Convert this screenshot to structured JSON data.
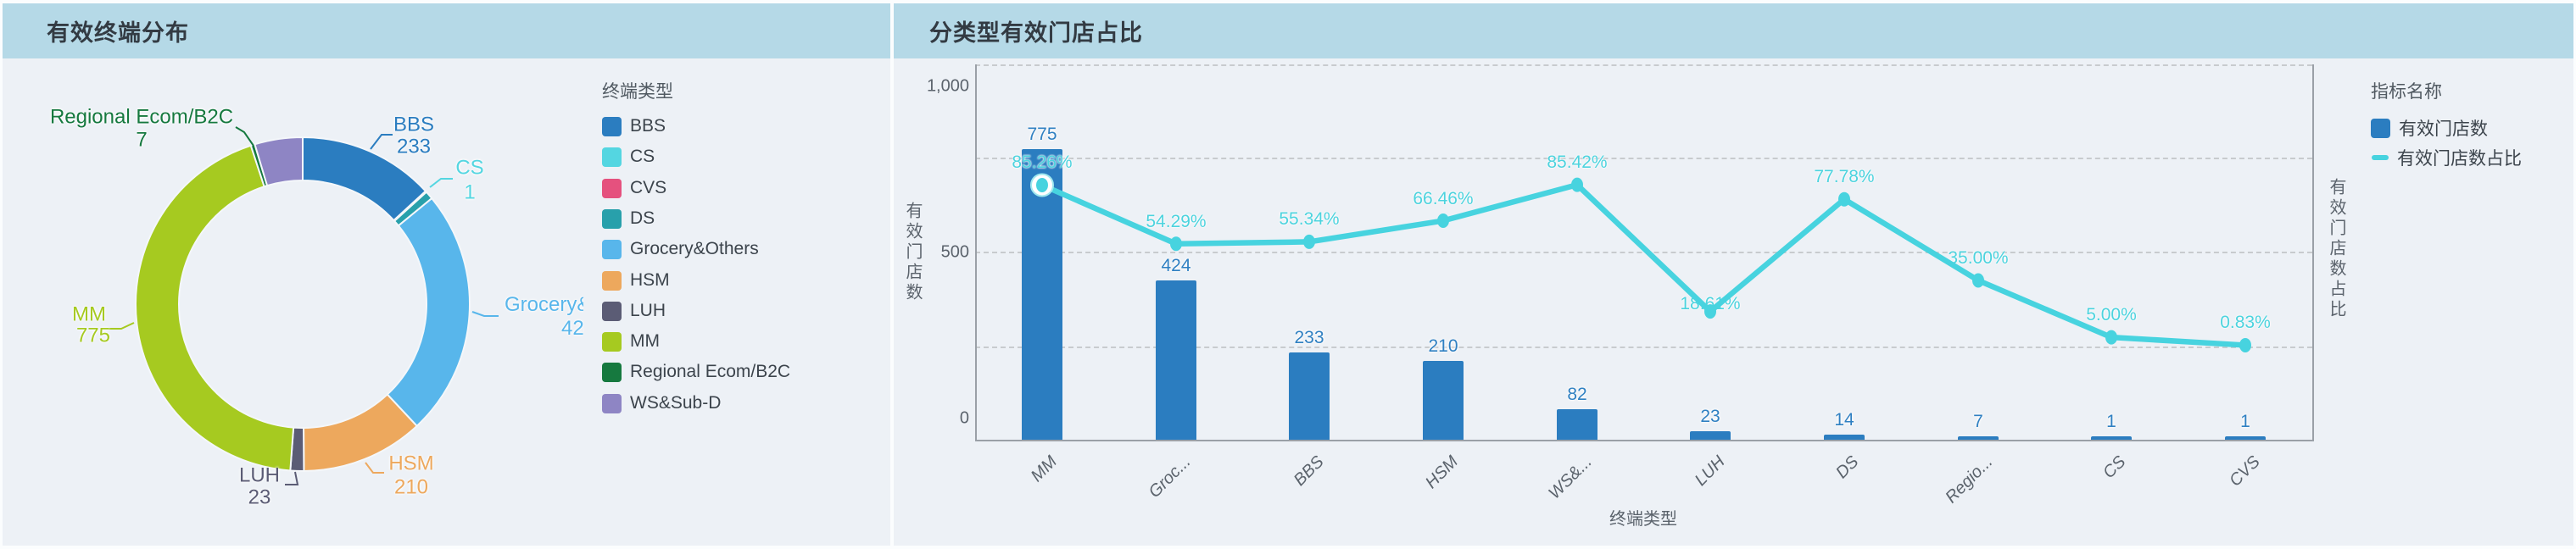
{
  "panels": {
    "left_title": "有效终端分布",
    "right_title": "分类型有效门店占比"
  },
  "chart_data": [
    {
      "type": "pie",
      "title": "有效终端分布",
      "legend_title": "终端类型",
      "legend_position": "right",
      "donut": true,
      "items": [
        {
          "name": "BBS",
          "value": 233,
          "color": "#2b7dc0"
        },
        {
          "name": "CS",
          "value": 1,
          "color": "#54d6e1"
        },
        {
          "name": "CVS",
          "value": 1,
          "color": "#e5517e"
        },
        {
          "name": "DS",
          "value": 14,
          "color": "#28a0ab"
        },
        {
          "name": "Grocery&Others",
          "value": 424,
          "color": "#58b6eb"
        },
        {
          "name": "HSM",
          "value": 210,
          "color": "#eda85d"
        },
        {
          "name": "LUH",
          "value": 23,
          "color": "#5b5c75"
        },
        {
          "name": "MM",
          "value": 775,
          "color": "#a6ca20"
        },
        {
          "name": "Regional Ecom/B2C",
          "value": 7,
          "color": "#16793f"
        },
        {
          "name": "WS&Sub-D",
          "value": 82,
          "color": "#8e85c4"
        }
      ]
    },
    {
      "type": "bar+line",
      "title": "分类型有效门店占比",
      "legend_title": "指标名称",
      "x_title": "终端类型",
      "y_title_left": "有效门店数",
      "y_title_right": "有效门店数占比",
      "y_ticks_left": [
        "1,000",
        "500",
        "0"
      ],
      "categories": [
        "MM",
        "Groc...",
        "BBS",
        "HSM",
        "WS&...",
        "LUH",
        "DS",
        "Regio...",
        "CS",
        "CVS"
      ],
      "grid": "dashed",
      "series": [
        {
          "name": "有效门店数",
          "type": "bar",
          "color": "#2b7dc0",
          "values": [
            775,
            424,
            233,
            210,
            82,
            23,
            14,
            7,
            1,
            1
          ]
        },
        {
          "name": "有效门店数占比",
          "type": "line",
          "color": "#47d3df",
          "labels": [
            "85.26%",
            "54.29%",
            "55.34%",
            "66.46%",
            "85.42%",
            "18.61%",
            "77.78%",
            "35.00%",
            "5.00%",
            "0.83%"
          ],
          "values_pct": [
            85.26,
            54.29,
            55.34,
            66.46,
            85.42,
            18.61,
            77.78,
            35.0,
            5.0,
            0.83
          ]
        }
      ]
    }
  ]
}
